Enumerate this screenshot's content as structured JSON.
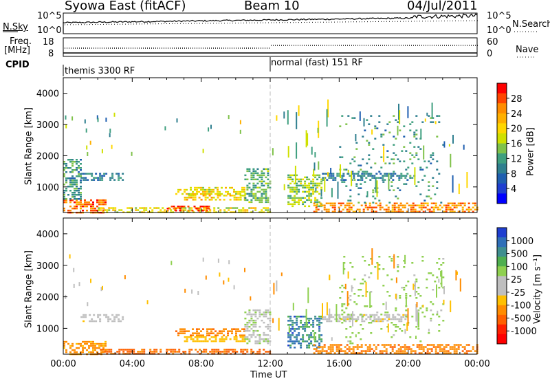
{
  "header": {
    "station": "Syowa East (fitACF)",
    "beam": "Beam 10",
    "date": "04/Jul/2011"
  },
  "noise_panel": {
    "left_label": "N.Sky",
    "left_ticks": [
      "10^5",
      "10^0"
    ],
    "right_ticks": [
      "10^5",
      "10^0"
    ],
    "right_label": "N.Search"
  },
  "freq_panel": {
    "left_label_line1": "Freq.",
    "left_label_line2": "[MHz]",
    "left_ticks": [
      "18",
      "8"
    ],
    "right_ticks": [
      "60",
      "0"
    ],
    "right_label": "Nave"
  },
  "cpid_panel": {
    "label": "CPID",
    "segments": [
      {
        "start": "00:00",
        "name": "themis 3300 RF"
      },
      {
        "start": "12:00",
        "name": "normal (fast) 151 RF"
      }
    ]
  },
  "axes": {
    "xlabel": "Time UT",
    "ylabel": "Slant Range [km]",
    "xticks": [
      "00:00",
      "04:00",
      "08:00",
      "12:00",
      "16:00",
      "20:00",
      "00:00"
    ],
    "yticks": [
      "1000",
      "2000",
      "3000",
      "4000"
    ]
  },
  "power_colorbar": {
    "label": "Power [dB]",
    "ticks": [
      "28",
      "24",
      "20",
      "16",
      "12",
      "8",
      "4"
    ],
    "colors": [
      "#ff0000",
      "#ff4500",
      "#ff8c00",
      "#ffb000",
      "#ffd700",
      "#cfe000",
      "#7fc24a",
      "#3f9f7f",
      "#2f7f8f",
      "#1f5fb0",
      "#1f3fd0",
      "#0000ff"
    ]
  },
  "velocity_colorbar": {
    "label": "Velocity [m s⁻¹]",
    "ticks": [
      "1000",
      "500",
      "100",
      "25",
      "-25",
      "-100",
      "-500",
      "-1000"
    ],
    "colors": [
      "#1f3fd0",
      "#2f6fb8",
      "#3f8f8f",
      "#4faf4f",
      "#8fd04f",
      "#bfbfbf",
      "#bfbfbf",
      "#ffc000",
      "#ff8c00",
      "#ff6000",
      "#ff2000",
      "#ff0000"
    ]
  },
  "chart_data": {
    "type": "heatmap",
    "x_range_hours": [
      0,
      24
    ],
    "y_range_km": [
      180,
      4500
    ],
    "power_echo_bands": [
      {
        "t0": 0.0,
        "t1": 2.5,
        "r0": 180,
        "r1": 600,
        "level": 26
      },
      {
        "t0": 0.0,
        "t1": 1.0,
        "r0": 600,
        "r1": 1900,
        "level": 10
      },
      {
        "t0": 1.0,
        "t1": 3.5,
        "r0": 1250,
        "r1": 1450,
        "level": 8
      },
      {
        "t0": 2.0,
        "t1": 12.0,
        "r0": 180,
        "r1": 350,
        "level": 18
      },
      {
        "t0": 6.0,
        "t1": 8.5,
        "r0": 250,
        "r1": 400,
        "level": 28
      },
      {
        "t0": 6.5,
        "t1": 10.5,
        "r0": 800,
        "r1": 1000,
        "level": 18
      },
      {
        "t0": 7.0,
        "t1": 10.5,
        "r0": 600,
        "r1": 750,
        "level": 20
      },
      {
        "t0": 10.5,
        "t1": 12.0,
        "r0": 500,
        "r1": 1600,
        "level": 12
      },
      {
        "t0": 13.0,
        "t1": 15.0,
        "r0": 400,
        "r1": 1400,
        "level": 14
      },
      {
        "t0": 14.5,
        "t1": 24.0,
        "r0": 180,
        "r1": 500,
        "level": 24
      },
      {
        "t0": 15.0,
        "t1": 20.0,
        "r0": 1250,
        "r1": 1450,
        "level": 8
      },
      {
        "t0": 16.0,
        "t1": 22.0,
        "r0": 500,
        "r1": 3300,
        "level": 10
      }
    ],
    "velocity_echo_bands": [
      {
        "t0": 0.0,
        "t1": 2.5,
        "r0": 180,
        "r1": 600,
        "v": -150
      },
      {
        "t0": 1.0,
        "t1": 3.5,
        "r0": 1250,
        "r1": 1450,
        "v": 0
      },
      {
        "t0": 2.0,
        "t1": 12.0,
        "r0": 180,
        "r1": 350,
        "v": -300
      },
      {
        "t0": 6.5,
        "t1": 10.5,
        "r0": 800,
        "r1": 1000,
        "v": -200
      },
      {
        "t0": 7.0,
        "t1": 10.5,
        "r0": 600,
        "r1": 750,
        "v": -60
      },
      {
        "t0": 10.5,
        "t1": 12.0,
        "r0": 500,
        "r1": 1600,
        "v": 80
      },
      {
        "t0": 13.0,
        "t1": 15.0,
        "r0": 400,
        "r1": 1400,
        "v": 700
      },
      {
        "t0": 14.5,
        "t1": 24.0,
        "r0": 180,
        "r1": 500,
        "v": -200
      },
      {
        "t0": 15.0,
        "t1": 20.0,
        "r0": 1250,
        "r1": 1450,
        "v": 0
      },
      {
        "t0": 16.0,
        "t1": 22.0,
        "r0": 500,
        "r1": 3300,
        "v": 150
      }
    ]
  }
}
